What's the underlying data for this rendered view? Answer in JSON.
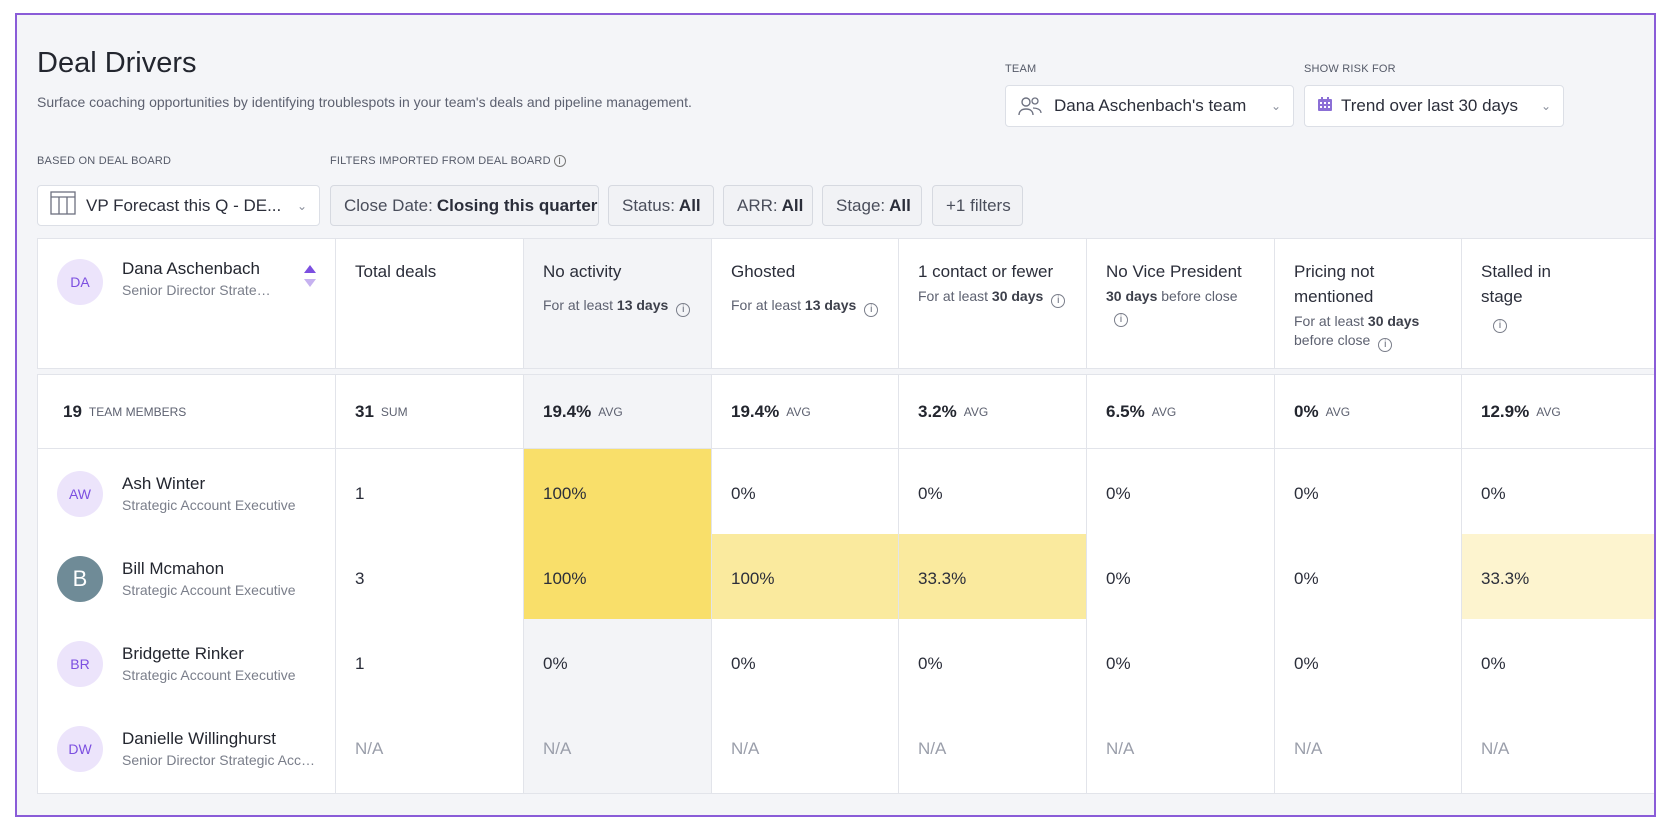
{
  "header": {
    "title": "Deal Drivers",
    "subtitle": "Surface coaching opportunities by identifying troublespots in your team's deals and pipeline management."
  },
  "team": {
    "label": "TEAM",
    "value": "Dana Aschenbach's team"
  },
  "risk": {
    "label": "SHOW RISK FOR",
    "value": "Trend over last 30 days"
  },
  "board": {
    "label": "BASED ON DEAL BOARD",
    "value": "VP Forecast this Q - DE..."
  },
  "filters": {
    "label": "FILTERS IMPORTED FROM DEAL BOARD",
    "chips": [
      {
        "key": "Close Date:",
        "value": "Closing this quarter"
      },
      {
        "key": "Status:",
        "value": "All"
      },
      {
        "key": "ARR:",
        "value": "All"
      },
      {
        "key": "Stage:",
        "value": "All"
      }
    ],
    "more": "+1 filters"
  },
  "table": {
    "owner": {
      "initials": "DA",
      "name": "Dana Aschenbach",
      "role": "Senior Director Strategic Accounts"
    },
    "columns": [
      {
        "title": "Total deals"
      },
      {
        "title": "No activity",
        "sub_pre": "For at least ",
        "sub_bold": "13 days",
        "sub_post": ""
      },
      {
        "title": "Ghosted",
        "sub_pre": "For at least ",
        "sub_bold": "13 days",
        "sub_post": ""
      },
      {
        "title": "1 contact or fewer",
        "sub_pre": "For at least ",
        "sub_bold": "30 days",
        "sub_post": ""
      },
      {
        "title": "No Vice President",
        "sub_pre": "",
        "sub_bold": "30 days",
        "sub_post": " before close"
      },
      {
        "title": "Pricing not mentioned",
        "sub_pre": "For at least ",
        "sub_bold": "30 days",
        "sub_post": " before close"
      },
      {
        "title": "Stalled in stage"
      }
    ],
    "summary": {
      "members_count": "19",
      "members_label": "TEAM MEMBERS",
      "values": [
        {
          "v": "31",
          "t": "SUM"
        },
        {
          "v": "19.4%",
          "t": "AVG"
        },
        {
          "v": "19.4%",
          "t": "AVG"
        },
        {
          "v": "3.2%",
          "t": "AVG"
        },
        {
          "v": "6.5%",
          "t": "AVG"
        },
        {
          "v": "0%",
          "t": "AVG"
        },
        {
          "v": "12.9%",
          "t": "AVG"
        }
      ]
    },
    "rows": [
      {
        "initials": "AW",
        "name": "Ash Winter",
        "role": "Strategic Account Executive",
        "photo": false,
        "values": [
          "1",
          "100%",
          "0%",
          "0%",
          "0%",
          "0%",
          "0%"
        ]
      },
      {
        "initials": "B",
        "name": "Bill Mcmahon",
        "role": "Strategic Account Executive",
        "photo": true,
        "values": [
          "3",
          "100%",
          "100%",
          "33.3%",
          "0%",
          "0%",
          "33.3%"
        ]
      },
      {
        "initials": "BR",
        "name": "Bridgette Rinker",
        "role": "Strategic Account Executive",
        "photo": false,
        "values": [
          "1",
          "0%",
          "0%",
          "0%",
          "0%",
          "0%",
          "0%"
        ]
      },
      {
        "initials": "DW",
        "name": "Danielle Willinghurst",
        "role": "Senior Director Strategic Accounts",
        "photo": false,
        "values": [
          "N/A",
          "N/A",
          "N/A",
          "N/A",
          "N/A",
          "N/A",
          "N/A"
        ]
      }
    ],
    "highlight_colors": {
      "strong": "#f9df6a",
      "medium": "#faea9e",
      "light": "#fdf4cf"
    }
  }
}
